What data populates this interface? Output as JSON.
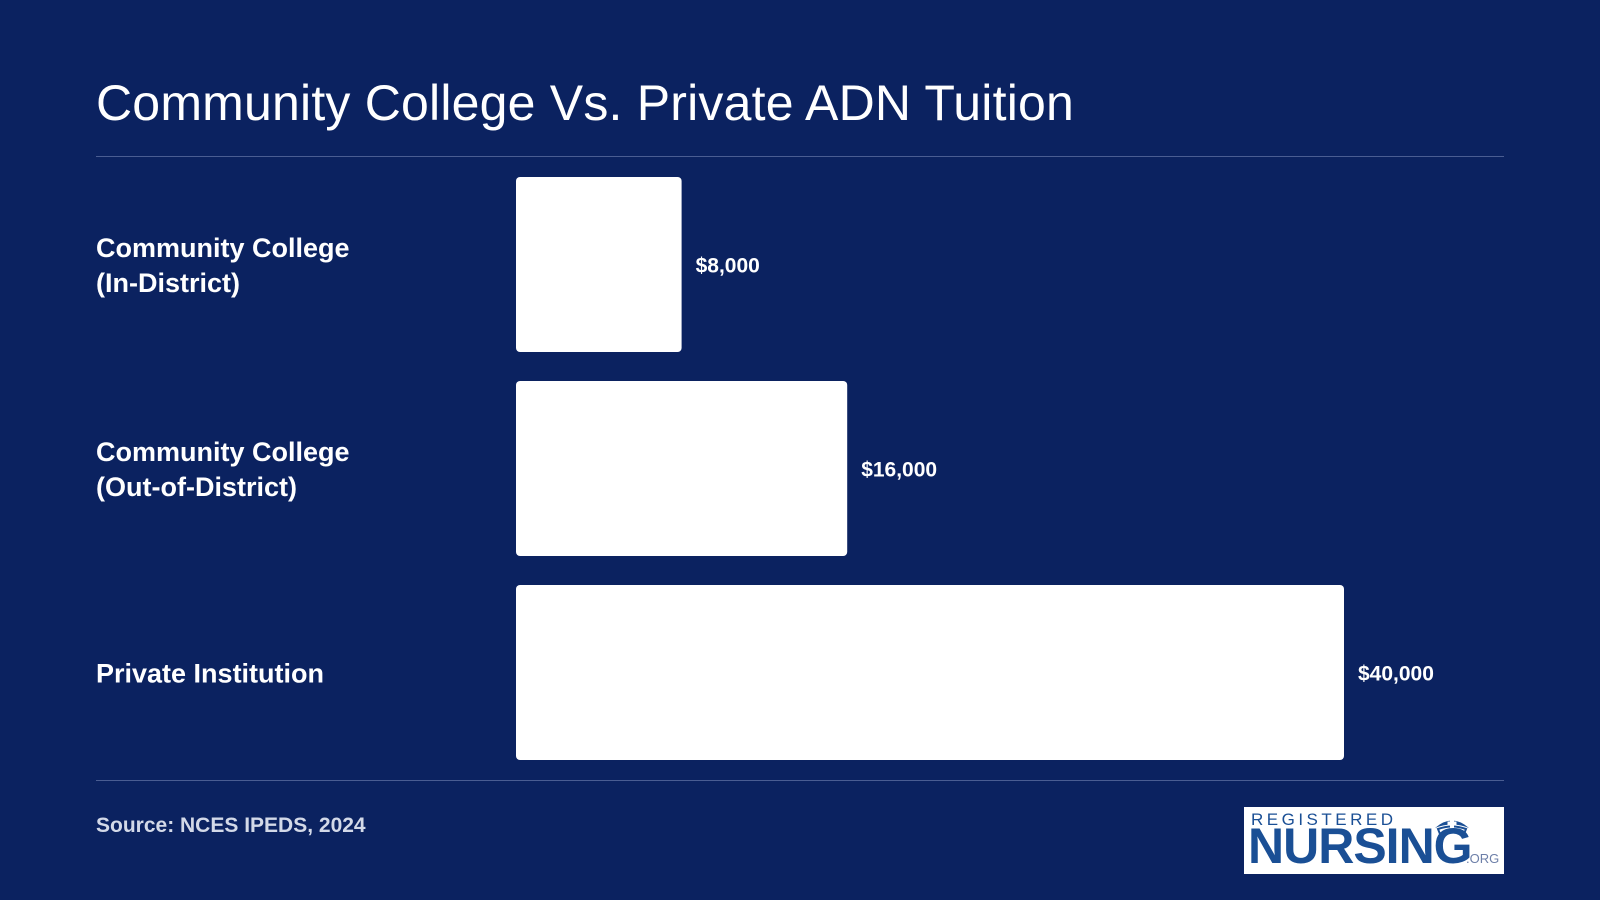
{
  "chart_data": {
    "type": "bar",
    "orientation": "horizontal",
    "title": "Community College Vs. Private ADN Tuition",
    "categories": [
      [
        "Community College",
        "(In-District)"
      ],
      [
        "Community College",
        "(Out-of-District)"
      ],
      [
        "Private Institution"
      ]
    ],
    "values": [
      8000,
      16000,
      40000
    ],
    "value_labels": [
      "$8,000",
      "$16,000",
      "$40,000"
    ],
    "xlim": [
      0,
      40000
    ],
    "grid": false,
    "legend": "none",
    "bar_color": "#ffffff"
  },
  "source": "Source: NCES IPEDS, 2024",
  "logo": {
    "top_text": "REGISTERED",
    "main_text": "NURSING",
    "suffix": ".ORG",
    "icon": "nurse-cap-icon"
  },
  "colors": {
    "background": "#0b2260",
    "bar": "#ffffff",
    "rule": "#4a5d92",
    "logo_blue": "#1a4f95"
  }
}
